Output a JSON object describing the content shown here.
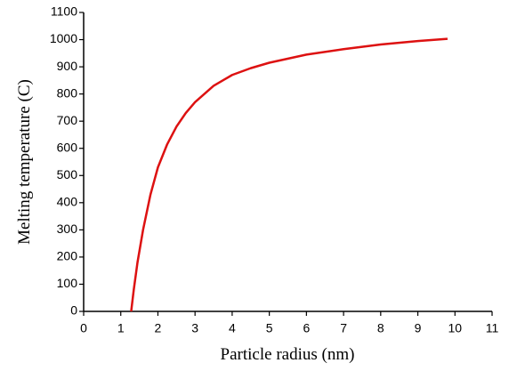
{
  "chart_data": {
    "type": "line",
    "xlabel": "Particle radius (nm)",
    "ylabel": "Melting temperature (C)",
    "x": [
      1.28,
      1.35,
      1.45,
      1.6,
      1.8,
      2,
      2.25,
      2.5,
      2.75,
      3,
      3.5,
      4,
      4.5,
      5,
      6,
      7,
      8,
      9,
      9.8
    ],
    "series": [
      {
        "color": "#dd1111",
        "values": [
          0,
          80,
          180,
          300,
          430,
          530,
          615,
          680,
          730,
          770,
          830,
          870,
          895,
          915,
          945,
          965,
          982,
          995,
          1003
        ]
      }
    ],
    "xlim": [
      0,
      11
    ],
    "xticks": [
      0,
      1,
      2,
      3,
      4,
      5,
      6,
      7,
      8,
      9,
      10,
      11
    ],
    "ylim": [
      0,
      1100
    ],
    "yticks": [
      0,
      100,
      200,
      300,
      400,
      500,
      600,
      700,
      800,
      900,
      1000,
      1100
    ]
  }
}
